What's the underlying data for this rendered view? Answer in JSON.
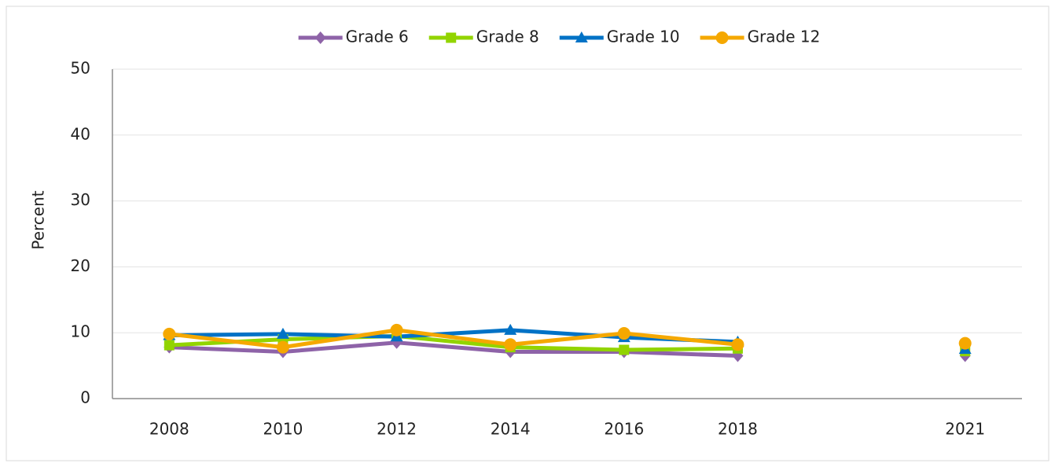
{
  "chart_data": {
    "type": "line",
    "categories": [
      "2008",
      "2010",
      "2012",
      "2014",
      "2016",
      "2018",
      null,
      "2021"
    ],
    "y_label": "Percent",
    "ylim": [
      0,
      50
    ],
    "yticks": [
      0,
      10,
      20,
      30,
      40,
      50
    ],
    "grid": true,
    "legend": "top",
    "series": [
      {
        "name": "Grade 6",
        "color": "#8e63a8",
        "marker": "diamond",
        "values": [
          7.8,
          7.1,
          8.5,
          7.1,
          7.1,
          6.5,
          null,
          6.5
        ]
      },
      {
        "name": "Grade 8",
        "color": "#92d400",
        "marker": "square",
        "values": [
          8.1,
          9.0,
          9.5,
          7.8,
          7.4,
          7.6,
          null,
          7.2
        ]
      },
      {
        "name": "Grade 10",
        "color": "#0072c6",
        "marker": "triangle",
        "values": [
          9.6,
          9.8,
          9.4,
          10.4,
          9.3,
          8.6,
          null,
          7.5
        ]
      },
      {
        "name": "Grade 12",
        "color": "#f5a800",
        "marker": "circle",
        "values": [
          9.8,
          7.8,
          10.4,
          8.2,
          9.9,
          8.2,
          null,
          8.4
        ]
      }
    ]
  }
}
